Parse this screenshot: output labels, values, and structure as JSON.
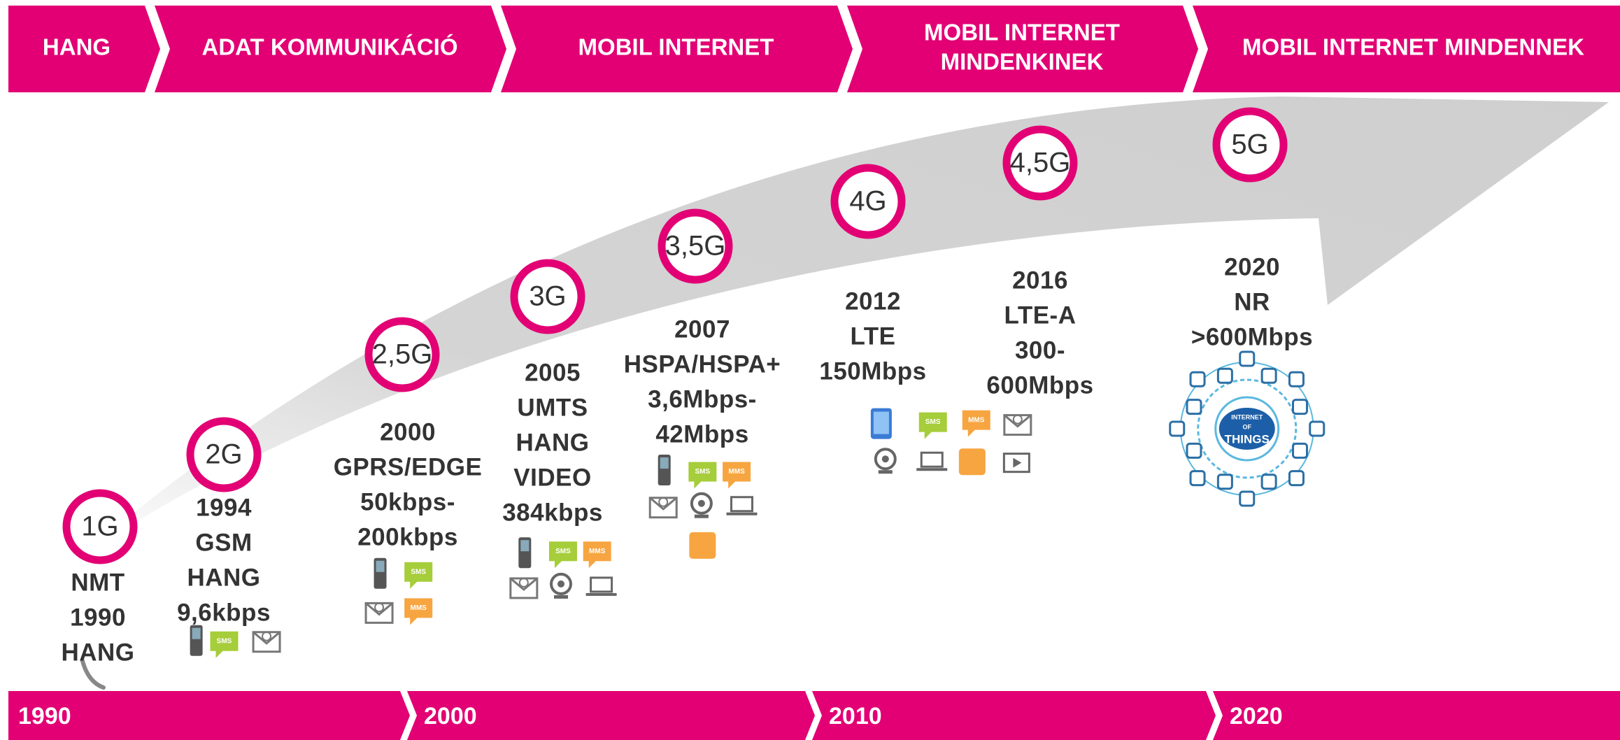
{
  "header": {
    "phases": [
      [
        "HANG"
      ],
      [
        "ADAT KOMMUNIKÁCIÓ"
      ],
      [
        "MOBIL INTERNET"
      ],
      [
        "MOBIL INTERNET",
        "MINDENKINEK"
      ],
      [
        "MOBIL INTERNET MINDENNEK"
      ]
    ]
  },
  "generations": [
    {
      "label": "1G",
      "lines": [
        "NMT",
        "1990",
        "HANG"
      ],
      "badges": []
    },
    {
      "label": "2G",
      "lines": [
        "1994",
        "GSM",
        "HANG",
        "9,6kbps"
      ],
      "badges": [
        "SMS"
      ]
    },
    {
      "label": "2,5G",
      "lines": [
        "2000",
        "GPRS/EDGE",
        "50kbps-",
        "200kbps"
      ],
      "badges": [
        "SMS",
        "MMS"
      ]
    },
    {
      "label": "3G",
      "lines": [
        "2005",
        "UMTS",
        "HANG",
        "VIDEO",
        "384kbps"
      ],
      "badges": [
        "SMS",
        "MMS"
      ]
    },
    {
      "label": "3,5G",
      "lines": [
        "2007",
        "HSPA/HSPA+",
        "3,6Mbps-",
        "42Mbps"
      ],
      "badges": [
        "SMS",
        "MMS"
      ]
    },
    {
      "label": "4G",
      "lines": [
        "2012",
        "LTE",
        "150Mbps"
      ],
      "badges": [
        "SMS",
        "MMS"
      ]
    },
    {
      "label": "4,5G",
      "lines": [
        "2016",
        "LTE-A",
        "300-",
        "600Mbps"
      ],
      "badges": []
    },
    {
      "label": "5G",
      "lines": [
        "2020",
        "NR",
        ">600Mbps"
      ],
      "badges": [
        "INTERNET",
        "OF",
        "THINGS"
      ]
    }
  ],
  "timeline": {
    "years": [
      "1990",
      "2000",
      "2010",
      "2020"
    ]
  }
}
